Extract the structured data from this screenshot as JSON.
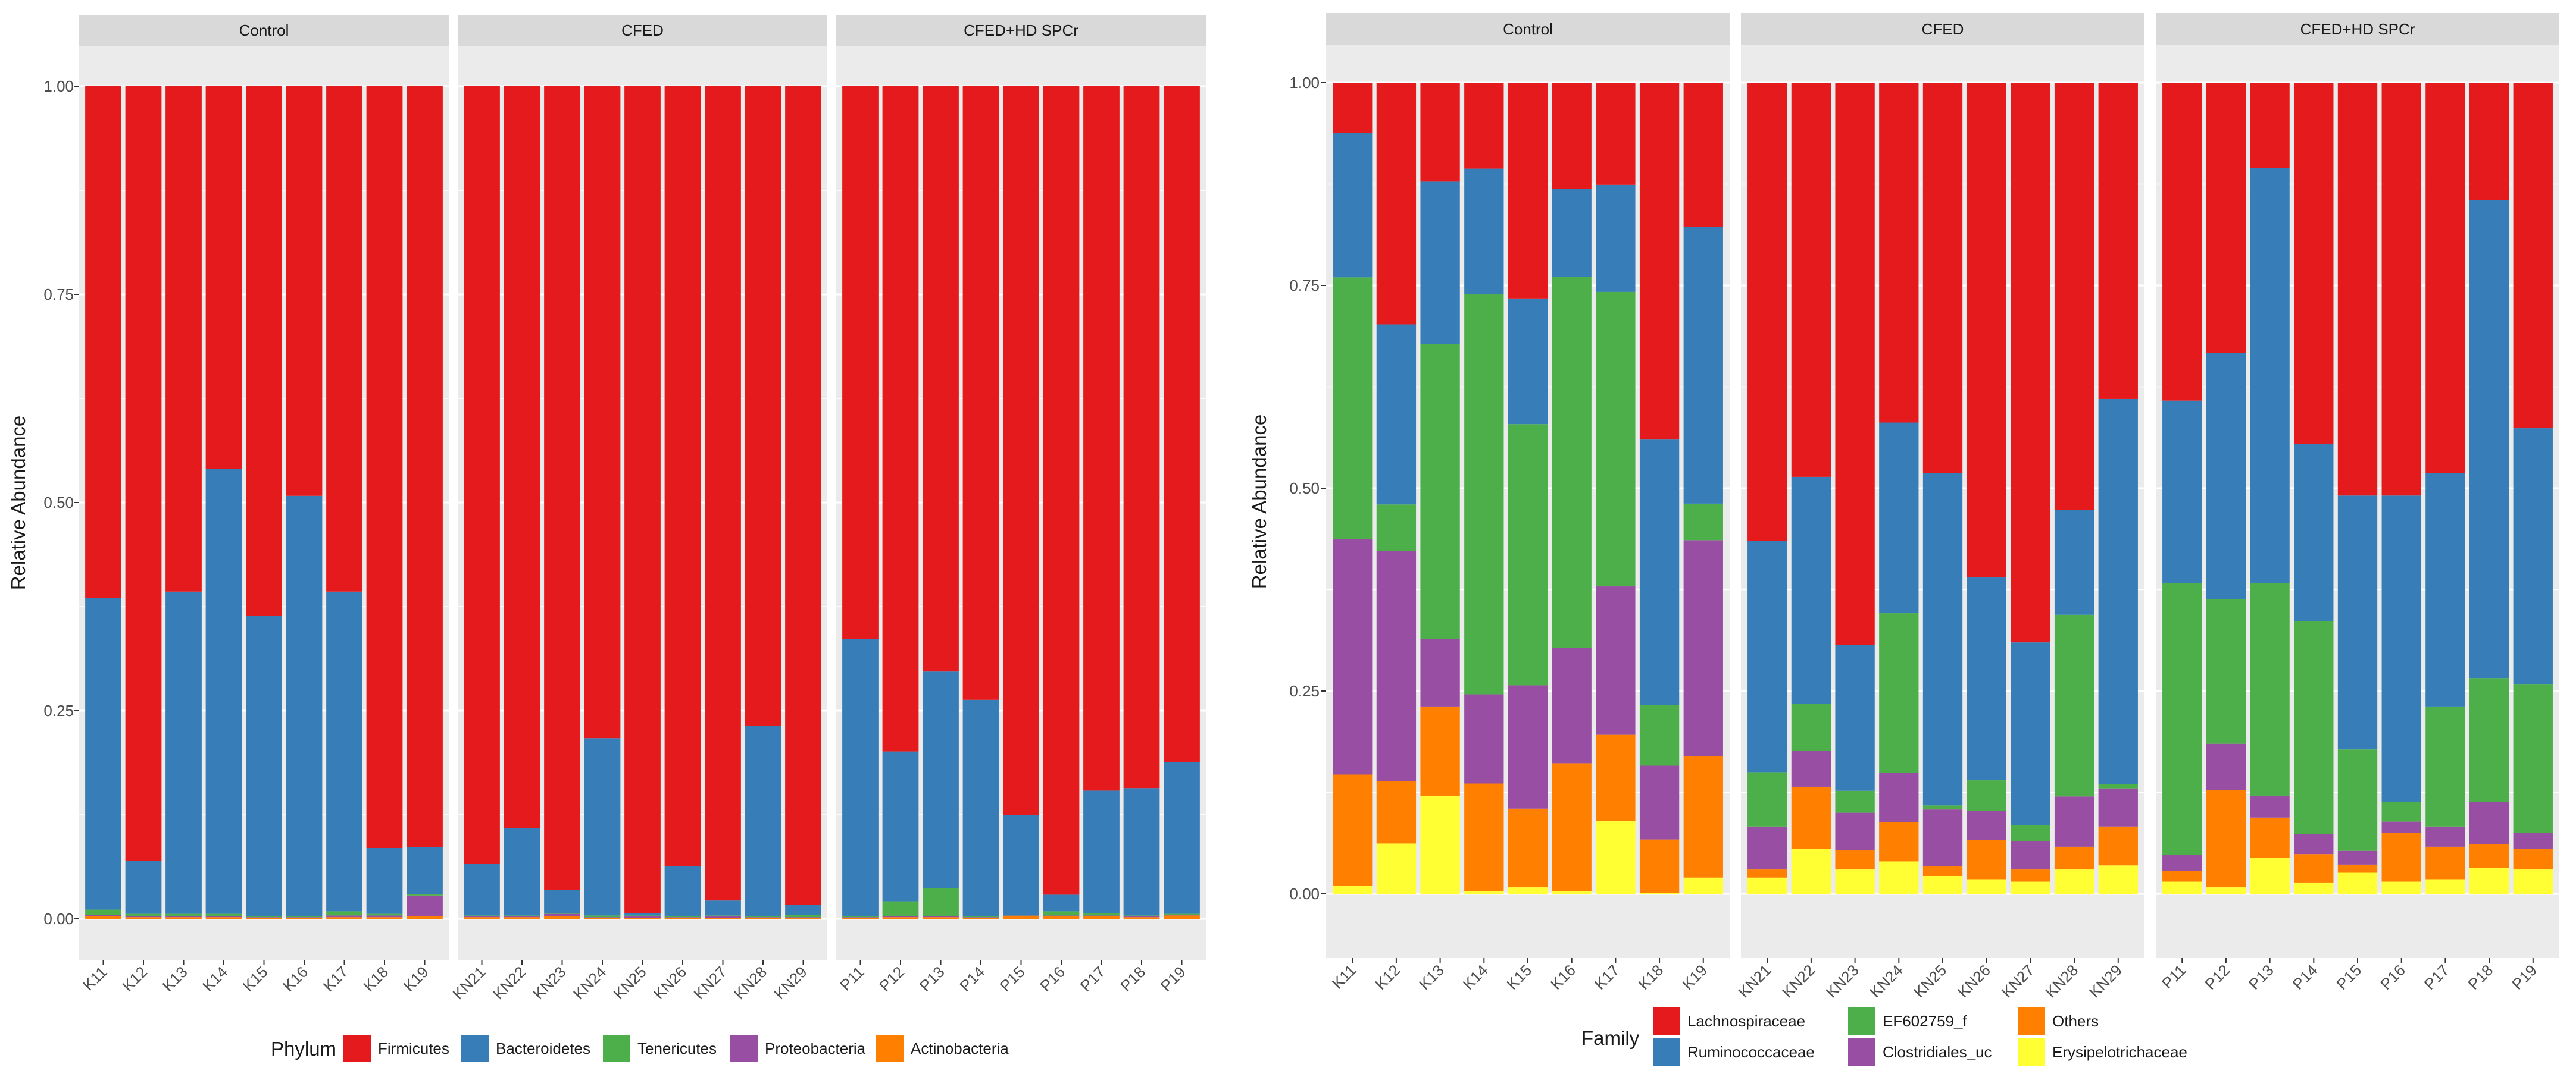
{
  "colors": {
    "panel_bg": "#EBEBEB",
    "strip_bg": "#D9D9D9",
    "grid": "#FFFFFF",
    "text_dark": "#1A1A1A",
    "text_axis": "#4D4D4D"
  },
  "chart_data": [
    {
      "type": "bar",
      "stacked": true,
      "title": "",
      "xlabel": "",
      "ylabel": "Relative Abundance",
      "ylim": [
        0,
        1
      ],
      "yticks": [
        "0.00",
        "0.25",
        "0.50",
        "0.75",
        "1.00"
      ],
      "legend": {
        "title": "Phylum",
        "position": "bottom",
        "entries": [
          {
            "name": "Firmicutes",
            "color": "#E41A1C"
          },
          {
            "name": "Bacteroidetes",
            "color": "#377EB8"
          },
          {
            "name": "Tenericutes",
            "color": "#4DAF4A"
          },
          {
            "name": "Proteobacteria",
            "color": "#984EA3"
          },
          {
            "name": "Actinobacteria",
            "color": "#FF7F00"
          }
        ]
      },
      "facets": [
        {
          "name": "Control",
          "categories": [
            "K11",
            "K12",
            "K13",
            "K14",
            "K15",
            "K16",
            "K17",
            "K18",
            "K19"
          ],
          "stack": [
            {
              "name": "Actinobacteria",
              "values": [
                0.003,
                0.002,
                0.002,
                0.002,
                0.001,
                0.001,
                0.002,
                0.002,
                0.003
              ]
            },
            {
              "name": "Proteobacteria",
              "values": [
                0.002,
                0.001,
                0.001,
                0.001,
                0.001,
                0.001,
                0.002,
                0.002,
                0.025
              ]
            },
            {
              "name": "Tenericutes",
              "values": [
                0.006,
                0.003,
                0.003,
                0.003,
                0.001,
                0.001,
                0.005,
                0.002,
                0.002
              ]
            },
            {
              "name": "Bacteroidetes",
              "values": [
                0.374,
                0.064,
                0.387,
                0.534,
                0.361,
                0.505,
                0.384,
                0.079,
                0.056
              ]
            },
            {
              "name": "Firmicutes",
              "values": [
                0.615,
                0.93,
                0.607,
                0.46,
                0.636,
                0.492,
                0.607,
                0.915,
                0.914
              ]
            }
          ]
        },
        {
          "name": "CFED",
          "categories": [
            "KN21",
            "KN22",
            "KN23",
            "KN24",
            "KN25",
            "KN26",
            "KN27",
            "KN28",
            "KN29"
          ],
          "stack": [
            {
              "name": "Actinobacteria",
              "values": [
                0.002,
                0.002,
                0.003,
                0.001,
                0.001,
                0.001,
                0.001,
                0.001,
                0.001
              ]
            },
            {
              "name": "Proteobacteria",
              "values": [
                0.001,
                0.001,
                0.003,
                0.001,
                0.002,
                0.001,
                0.002,
                0.001,
                0.001
              ]
            },
            {
              "name": "Tenericutes",
              "values": [
                0.001,
                0.001,
                0.001,
                0.002,
                0.001,
                0.001,
                0.001,
                0.001,
                0.003
              ]
            },
            {
              "name": "Bacteroidetes",
              "values": [
                0.062,
                0.105,
                0.028,
                0.213,
                0.003,
                0.06,
                0.018,
                0.229,
                0.012
              ]
            },
            {
              "name": "Firmicutes",
              "values": [
                0.934,
                0.891,
                0.965,
                0.783,
                0.993,
                0.937,
                0.978,
                0.768,
                0.983
              ]
            }
          ]
        },
        {
          "name": "CFED+HD SPCr",
          "categories": [
            "P11",
            "P12",
            "P13",
            "P14",
            "P15",
            "P16",
            "P17",
            "P18",
            "P19"
          ],
          "stack": [
            {
              "name": "Actinobacteria",
              "values": [
                0.001,
                0.002,
                0.002,
                0.001,
                0.003,
                0.003,
                0.003,
                0.002,
                0.004
              ]
            },
            {
              "name": "Proteobacteria",
              "values": [
                0.001,
                0.001,
                0.001,
                0.001,
                0.001,
                0.001,
                0.001,
                0.001,
                0.001
              ]
            },
            {
              "name": "Tenericutes",
              "values": [
                0.001,
                0.018,
                0.034,
                0.001,
                0.001,
                0.005,
                0.003,
                0.001,
                0.001
              ]
            },
            {
              "name": "Bacteroidetes",
              "values": [
                0.333,
                0.18,
                0.26,
                0.26,
                0.12,
                0.02,
                0.147,
                0.153,
                0.182
              ]
            },
            {
              "name": "Firmicutes",
              "values": [
                0.664,
                0.799,
                0.703,
                0.737,
                0.875,
                0.971,
                0.846,
                0.843,
                0.812
              ]
            }
          ]
        }
      ]
    },
    {
      "type": "bar",
      "stacked": true,
      "title": "",
      "xlabel": "",
      "ylabel": "Relative Abundance",
      "ylim": [
        0,
        1
      ],
      "yticks": [
        "0.00",
        "0.25",
        "0.50",
        "0.75",
        "1.00"
      ],
      "legend": {
        "title": "Family",
        "position": "bottom",
        "entries": [
          {
            "name": "Lachnospiraceae",
            "color": "#E41A1C"
          },
          {
            "name": "Ruminococcaceae",
            "color": "#377EB8"
          },
          {
            "name": "EF602759_f",
            "color": "#4DAF4A"
          },
          {
            "name": "Clostridiales_uc",
            "color": "#984EA3"
          },
          {
            "name": "Others",
            "color": "#FF7F00"
          },
          {
            "name": "Erysipelotrichaceae",
            "color": "#FFFF33"
          }
        ]
      },
      "facets": [
        {
          "name": "Control",
          "categories": [
            "K11",
            "K12",
            "K13",
            "K14",
            "K15",
            "K16",
            "K17",
            "K18",
            "K19"
          ],
          "stack": [
            {
              "name": "Erysipelotrichaceae",
              "values": [
                0.01,
                0.062,
                0.121,
                0.003,
                0.008,
                0.003,
                0.09,
                0.001,
                0.02
              ]
            },
            {
              "name": "Others",
              "values": [
                0.137,
                0.077,
                0.11,
                0.133,
                0.097,
                0.158,
                0.106,
                0.066,
                0.15
              ]
            },
            {
              "name": "Clostridiales_uc",
              "values": [
                0.29,
                0.284,
                0.083,
                0.11,
                0.152,
                0.142,
                0.183,
                0.091,
                0.266
              ]
            },
            {
              "name": "EF602759_f",
              "values": [
                0.323,
                0.057,
                0.364,
                0.493,
                0.322,
                0.458,
                0.363,
                0.075,
                0.045
              ]
            },
            {
              "name": "Ruminococcaceae",
              "values": [
                0.178,
                0.222,
                0.2,
                0.155,
                0.155,
                0.108,
                0.132,
                0.327,
                0.341
              ]
            },
            {
              "name": "Lachnospiraceae",
              "values": [
                0.062,
                0.298,
                0.122,
                0.106,
                0.266,
                0.131,
                0.126,
                0.44,
                0.178
              ]
            }
          ]
        },
        {
          "name": "CFED",
          "categories": [
            "KN21",
            "KN22",
            "KN23",
            "KN24",
            "KN25",
            "KN26",
            "KN27",
            "KN28",
            "KN29"
          ],
          "stack": [
            {
              "name": "Erysipelotrichaceae",
              "values": [
                0.02,
                0.055,
                0.03,
                0.04,
                0.022,
                0.018,
                0.015,
                0.03,
                0.035
              ]
            },
            {
              "name": "Others",
              "values": [
                0.01,
                0.077,
                0.024,
                0.048,
                0.012,
                0.048,
                0.015,
                0.028,
                0.048
              ]
            },
            {
              "name": "Clostridiales_uc",
              "values": [
                0.053,
                0.044,
                0.046,
                0.061,
                0.07,
                0.036,
                0.035,
                0.062,
                0.047
              ]
            },
            {
              "name": "EF602759_f",
              "values": [
                0.067,
                0.058,
                0.027,
                0.197,
                0.005,
                0.038,
                0.02,
                0.224,
                0.005
              ]
            },
            {
              "name": "Ruminococcaceae",
              "values": [
                0.285,
                0.28,
                0.18,
                0.235,
                0.41,
                0.25,
                0.225,
                0.129,
                0.475
              ]
            },
            {
              "name": "Lachnospiraceae",
              "values": [
                0.565,
                0.486,
                0.693,
                0.419,
                0.481,
                0.61,
                0.69,
                0.527,
                0.39
              ]
            }
          ]
        },
        {
          "name": "CFED+HD SPCr",
          "categories": [
            "P11",
            "P12",
            "P13",
            "P14",
            "P15",
            "P16",
            "P17",
            "P18",
            "P19"
          ],
          "stack": [
            {
              "name": "Erysipelotrichaceae",
              "values": [
                0.015,
                0.008,
                0.044,
                0.014,
                0.026,
                0.015,
                0.018,
                0.032,
                0.03
              ]
            },
            {
              "name": "Others",
              "values": [
                0.013,
                0.12,
                0.05,
                0.035,
                0.01,
                0.06,
                0.04,
                0.029,
                0.025
              ]
            },
            {
              "name": "Clostridiales_uc",
              "values": [
                0.02,
                0.057,
                0.027,
                0.025,
                0.017,
                0.014,
                0.025,
                0.052,
                0.02
              ]
            },
            {
              "name": "EF602759_f",
              "values": [
                0.335,
                0.178,
                0.262,
                0.262,
                0.125,
                0.024,
                0.148,
                0.153,
                0.183
              ]
            },
            {
              "name": "Ruminococcaceae",
              "values": [
                0.225,
                0.304,
                0.512,
                0.219,
                0.313,
                0.378,
                0.288,
                0.589,
                0.316
              ]
            },
            {
              "name": "Lachnospiraceae",
              "values": [
                0.392,
                0.333,
                0.105,
                0.445,
                0.509,
                0.509,
                0.481,
                0.145,
                0.426
              ]
            }
          ]
        }
      ]
    }
  ]
}
